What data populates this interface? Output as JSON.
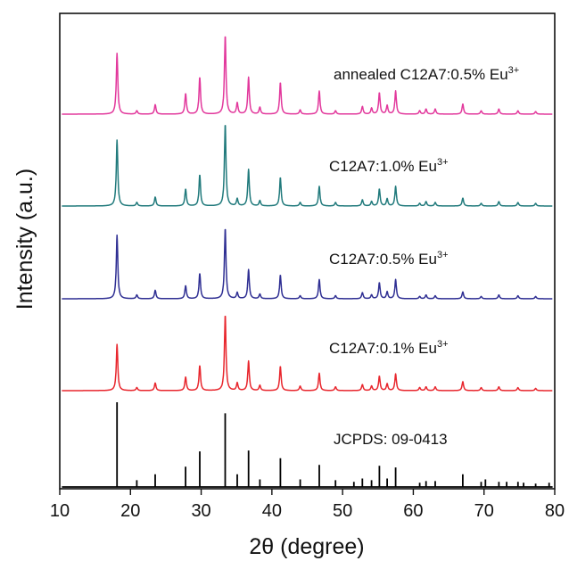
{
  "chart_data": {
    "type": "line",
    "xlabel": "2θ (degree)",
    "ylabel": "Intensity (a.u.)",
    "xlim": [
      10,
      80
    ],
    "xticks": [
      10,
      20,
      30,
      40,
      50,
      60,
      70,
      80
    ],
    "grid": false,
    "legend": "inline labels right of each trace",
    "series": [
      {
        "name": "JCPDS: 09-0413",
        "label_main": "JCPDS: 09-0413",
        "label_sup": "",
        "color": "#000000",
        "style": "stick",
        "peaks": [
          [
            18.1,
            1.0
          ],
          [
            20.9,
            0.08
          ],
          [
            23.5,
            0.15
          ],
          [
            27.8,
            0.24
          ],
          [
            29.8,
            0.42
          ],
          [
            33.4,
            0.87
          ],
          [
            35.1,
            0.15
          ],
          [
            36.7,
            0.43
          ],
          [
            38.3,
            0.09
          ],
          [
            41.2,
            0.34
          ],
          [
            44.0,
            0.09
          ],
          [
            46.7,
            0.26
          ],
          [
            49.0,
            0.08
          ],
          [
            51.6,
            0.06
          ],
          [
            52.8,
            0.1
          ],
          [
            54.1,
            0.08
          ],
          [
            55.2,
            0.25
          ],
          [
            56.3,
            0.1
          ],
          [
            57.5,
            0.23
          ],
          [
            60.9,
            0.05
          ],
          [
            61.8,
            0.07
          ],
          [
            63.1,
            0.07
          ],
          [
            67.0,
            0.15
          ],
          [
            69.6,
            0.06
          ],
          [
            70.2,
            0.09
          ],
          [
            72.1,
            0.06
          ],
          [
            73.2,
            0.06
          ],
          [
            74.8,
            0.06
          ],
          [
            75.6,
            0.05
          ],
          [
            77.3,
            0.04
          ],
          [
            79.2,
            0.05
          ]
        ]
      },
      {
        "name": "C12A7:0.1% Eu3+",
        "label_main": "C12A7:0.1% Eu",
        "label_sup": "3+",
        "color": "#e8262d",
        "style": "profile",
        "peaks": [
          [
            18.1,
            0.61
          ],
          [
            20.9,
            0.04
          ],
          [
            23.5,
            0.1
          ],
          [
            27.8,
            0.18
          ],
          [
            29.8,
            0.33
          ],
          [
            33.4,
            1.0
          ],
          [
            35.1,
            0.1
          ],
          [
            36.7,
            0.39
          ],
          [
            38.3,
            0.07
          ],
          [
            41.2,
            0.32
          ],
          [
            44.0,
            0.06
          ],
          [
            46.7,
            0.23
          ],
          [
            49.0,
            0.05
          ],
          [
            52.8,
            0.08
          ],
          [
            54.1,
            0.06
          ],
          [
            55.2,
            0.19
          ],
          [
            56.3,
            0.09
          ],
          [
            57.5,
            0.22
          ],
          [
            60.9,
            0.04
          ],
          [
            61.8,
            0.05
          ],
          [
            63.1,
            0.05
          ],
          [
            67.0,
            0.12
          ],
          [
            69.6,
            0.04
          ],
          [
            72.1,
            0.05
          ],
          [
            74.8,
            0.04
          ],
          [
            77.3,
            0.03
          ]
        ]
      },
      {
        "name": "C12A7:0.5% Eu3+",
        "label_main": "C12A7:0.5% Eu",
        "label_sup": "3+",
        "color": "#2f2f93",
        "style": "profile",
        "peaks": [
          [
            18.1,
            0.83
          ],
          [
            20.9,
            0.05
          ],
          [
            23.5,
            0.11
          ],
          [
            27.8,
            0.17
          ],
          [
            29.8,
            0.33
          ],
          [
            33.4,
            0.92
          ],
          [
            35.1,
            0.08
          ],
          [
            36.7,
            0.38
          ],
          [
            38.3,
            0.06
          ],
          [
            41.2,
            0.31
          ],
          [
            44.0,
            0.04
          ],
          [
            46.7,
            0.25
          ],
          [
            49.0,
            0.04
          ],
          [
            52.8,
            0.08
          ],
          [
            54.1,
            0.05
          ],
          [
            55.2,
            0.21
          ],
          [
            56.3,
            0.09
          ],
          [
            57.5,
            0.25
          ],
          [
            60.9,
            0.03
          ],
          [
            61.8,
            0.05
          ],
          [
            63.1,
            0.04
          ],
          [
            67.0,
            0.09
          ],
          [
            69.6,
            0.03
          ],
          [
            72.1,
            0.05
          ],
          [
            74.8,
            0.04
          ],
          [
            77.3,
            0.03
          ]
        ]
      },
      {
        "name": "C12A7:1.0% Eu3+",
        "label_main": "C12A7:1.0% Eu",
        "label_sup": "3+",
        "color": "#217a7c",
        "style": "profile",
        "peaks": [
          [
            18.1,
            0.74
          ],
          [
            20.9,
            0.04
          ],
          [
            23.5,
            0.1
          ],
          [
            27.8,
            0.19
          ],
          [
            29.8,
            0.35
          ],
          [
            33.4,
            0.92
          ],
          [
            35.1,
            0.08
          ],
          [
            36.7,
            0.41
          ],
          [
            38.3,
            0.06
          ],
          [
            41.2,
            0.32
          ],
          [
            44.0,
            0.04
          ],
          [
            46.7,
            0.22
          ],
          [
            49.0,
            0.04
          ],
          [
            52.8,
            0.07
          ],
          [
            54.1,
            0.05
          ],
          [
            55.2,
            0.19
          ],
          [
            56.3,
            0.08
          ],
          [
            57.5,
            0.22
          ],
          [
            60.9,
            0.03
          ],
          [
            61.8,
            0.05
          ],
          [
            63.1,
            0.04
          ],
          [
            67.0,
            0.09
          ],
          [
            69.6,
            0.03
          ],
          [
            72.1,
            0.05
          ],
          [
            74.8,
            0.04
          ],
          [
            77.3,
            0.03
          ]
        ]
      },
      {
        "name": "annealed C12A7:0.5% Eu3+",
        "label_main": "annealed C12A7:0.5% Eu",
        "label_sup": "3+",
        "color": "#e2389c",
        "style": "profile",
        "peaks": [
          [
            18.1,
            0.71
          ],
          [
            20.9,
            0.04
          ],
          [
            23.5,
            0.11
          ],
          [
            27.8,
            0.24
          ],
          [
            29.8,
            0.43
          ],
          [
            33.4,
            0.92
          ],
          [
            35.1,
            0.13
          ],
          [
            36.7,
            0.43
          ],
          [
            38.3,
            0.08
          ],
          [
            41.2,
            0.37
          ],
          [
            44.0,
            0.05
          ],
          [
            46.7,
            0.27
          ],
          [
            49.0,
            0.04
          ],
          [
            52.8,
            0.09
          ],
          [
            54.1,
            0.07
          ],
          [
            55.2,
            0.25
          ],
          [
            56.3,
            0.1
          ],
          [
            57.5,
            0.27
          ],
          [
            60.9,
            0.04
          ],
          [
            61.8,
            0.06
          ],
          [
            63.1,
            0.06
          ],
          [
            67.0,
            0.12
          ],
          [
            69.6,
            0.04
          ],
          [
            72.1,
            0.06
          ],
          [
            74.8,
            0.04
          ],
          [
            77.3,
            0.03
          ]
        ]
      }
    ]
  }
}
